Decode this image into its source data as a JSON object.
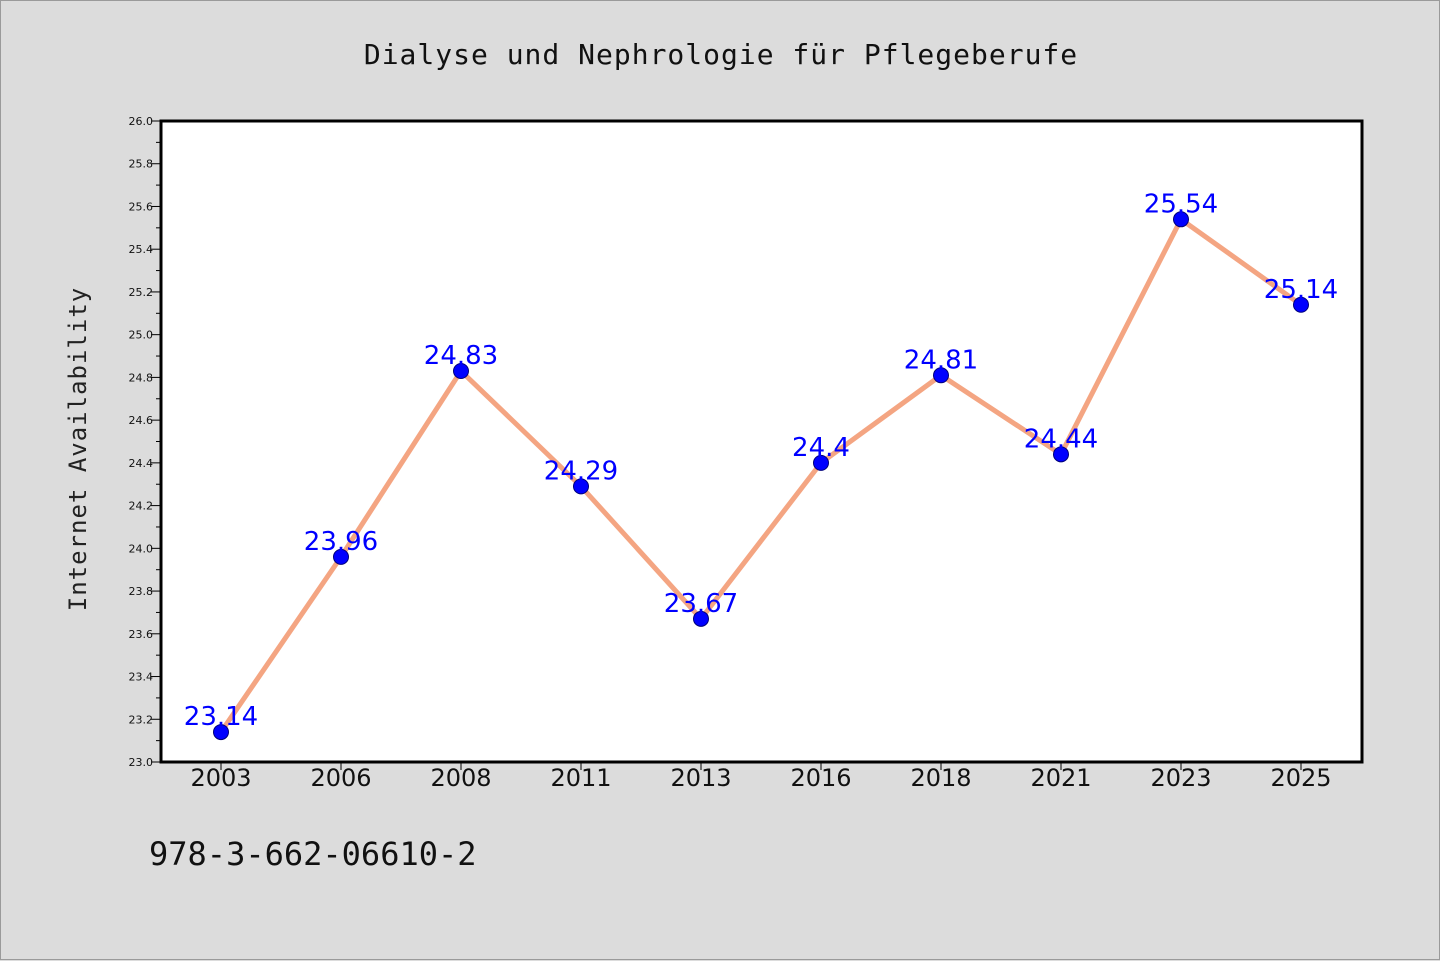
{
  "chart_data": {
    "type": "line",
    "title": "Dialyse und Nephrologie für Pflegeberufe",
    "xlabel": "",
    "ylabel": "Internet Availability",
    "categories": [
      "2003",
      "2006",
      "2008",
      "2011",
      "2013",
      "2016",
      "2018",
      "2021",
      "2023",
      "2025"
    ],
    "values": [
      23.14,
      23.96,
      24.83,
      24.29,
      23.67,
      24.4,
      24.81,
      24.44,
      25.54,
      25.14
    ],
    "data_labels": [
      "23.14",
      "23.96",
      "24.83",
      "24.29",
      "23.67",
      "24.4",
      "24.81",
      "24.44",
      "25.54",
      "25.14"
    ],
    "ylim": [
      23.0,
      26.0
    ],
    "yticks": [
      "23.0",
      "23.2",
      "23.4",
      "23.6",
      "23.8",
      "24.0",
      "24.2",
      "24.4",
      "24.6",
      "24.8",
      "25.0",
      "25.2",
      "25.4",
      "25.6",
      "25.8",
      "26.0"
    ],
    "grid": false,
    "legend": "none",
    "colors": {
      "line": "#f4a582",
      "marker": "#0000ff",
      "label": "#0000ff",
      "background": "#dcdcdc",
      "plot_area": "#ffffff"
    }
  },
  "footer": {
    "isbn": "978-3-662-06610-2"
  }
}
